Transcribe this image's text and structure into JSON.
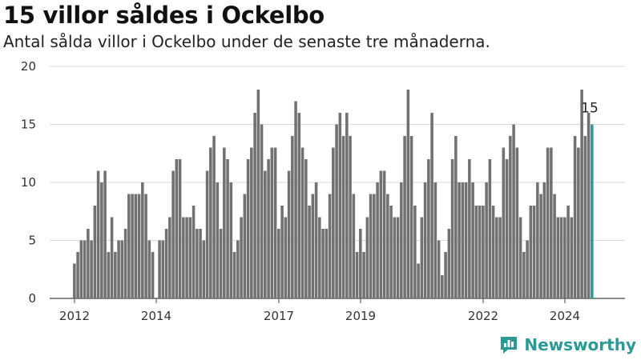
{
  "header": {
    "title": "15 villor såldes i Ockelbo",
    "subtitle": "Antal sålda villor i Ockelbo under de senaste tre månaderna."
  },
  "brand": {
    "name": "Newsworthy",
    "icon": "newsworthy-logo-icon",
    "color": "#2b9a96"
  },
  "chart_data": {
    "type": "bar",
    "x_start": "2012-01",
    "x_ticks": [
      "2012",
      "2014",
      "2017",
      "2019",
      "2022",
      "2024"
    ],
    "y_ticks": [
      0,
      5,
      10,
      15,
      20
    ],
    "ylim": [
      0,
      20
    ],
    "bar_color": "#717073",
    "highlight_color": "#2b9a96",
    "grid": true,
    "last_value_label": "15",
    "values": [
      3,
      4,
      5,
      5,
      6,
      5,
      8,
      11,
      10,
      11,
      4,
      7,
      4,
      5,
      5,
      6,
      9,
      9,
      9,
      9,
      10,
      9,
      5,
      4,
      0,
      5,
      5,
      6,
      7,
      11,
      12,
      12,
      7,
      7,
      7,
      8,
      6,
      6,
      5,
      11,
      13,
      14,
      10,
      6,
      13,
      12,
      10,
      4,
      5,
      7,
      9,
      12,
      13,
      16,
      18,
      15,
      11,
      12,
      13,
      13,
      6,
      8,
      7,
      11,
      14,
      17,
      16,
      13,
      12,
      8,
      9,
      10,
      7,
      6,
      6,
      9,
      13,
      15,
      16,
      14,
      16,
      14,
      9,
      4,
      6,
      4,
      7,
      9,
      9,
      10,
      11,
      11,
      9,
      8,
      7,
      7,
      10,
      14,
      18,
      14,
      8,
      3,
      7,
      10,
      12,
      16,
      10,
      5,
      2,
      4,
      6,
      12,
      14,
      10,
      10,
      10,
      12,
      10,
      8,
      8,
      8,
      10,
      12,
      8,
      7,
      7,
      13,
      12,
      14,
      15,
      13,
      7,
      4,
      5,
      8,
      8,
      10,
      9,
      10,
      13,
      13,
      9,
      7,
      7,
      7,
      8,
      7,
      14,
      13,
      18,
      14,
      16,
      15
    ]
  }
}
